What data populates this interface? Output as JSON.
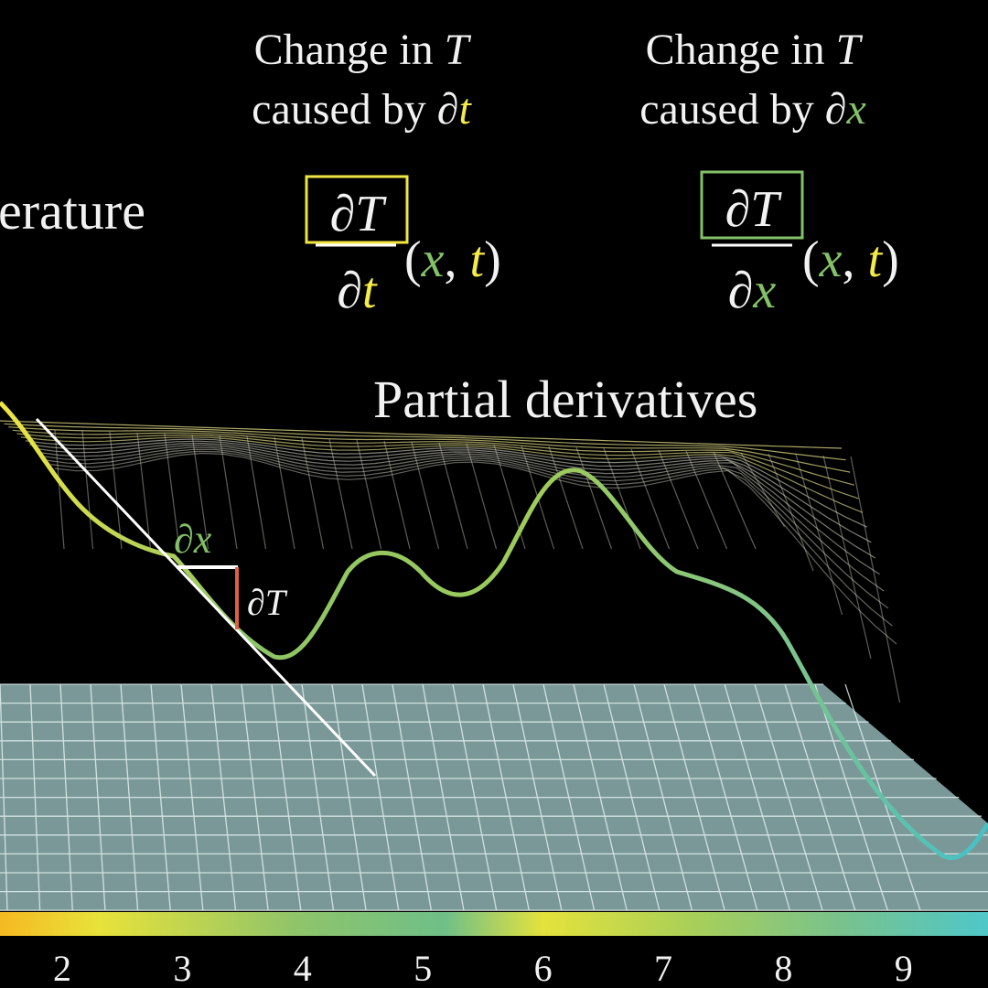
{
  "t_block": {
    "line1_text": "Change in",
    "line1_var": "T",
    "line2_text": "caused by",
    "line2_op": "∂",
    "line2_var": "t"
  },
  "x_block": {
    "line1_text": "Change in",
    "line1_var": "T",
    "line2_text": "caused by",
    "line2_op": "∂",
    "line2_var": "x"
  },
  "t_formula": {
    "numerator": "∂T",
    "den_op": "∂",
    "den_var": "t",
    "open": "(",
    "arg1": "x",
    "sep": ",",
    "arg2": "t",
    "close": ")"
  },
  "x_formula": {
    "numerator": "∂T",
    "den_op": "∂",
    "den_var": "x",
    "open": "(",
    "arg1": "x",
    "sep": ",",
    "arg2": "t",
    "close": ")"
  },
  "side_label": "erature",
  "heading": "Partial derivatives",
  "dx_label": "∂x",
  "dT_label": "∂T",
  "axis": {
    "ticks": [
      2,
      3,
      4,
      5,
      6,
      7,
      8,
      9
    ]
  }
}
